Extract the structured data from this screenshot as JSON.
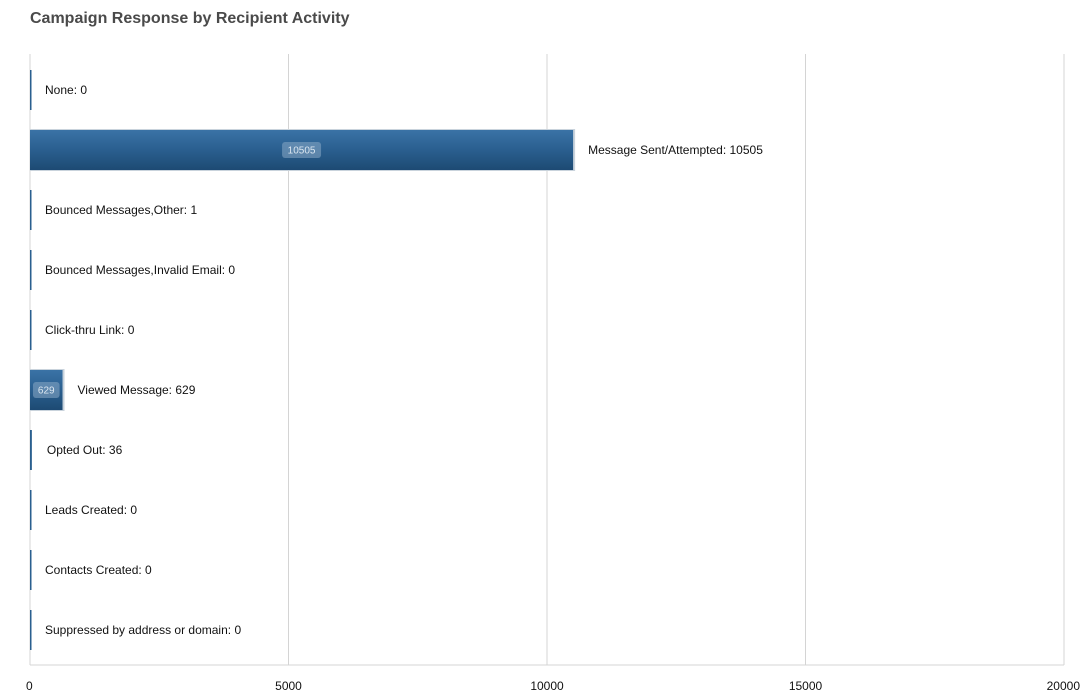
{
  "chart_data": {
    "type": "bar",
    "orientation": "horizontal",
    "title": "Campaign Response by Recipient Activity",
    "categories": [
      "None",
      "Message Sent/Attempted",
      "Bounced Messages,Other",
      "Bounced Messages,Invalid Email",
      "Click-thru Link",
      "Viewed Message",
      "Opted Out",
      "Leads Created",
      "Contacts Created",
      "Suppressed by address or domain"
    ],
    "values": [
      0,
      10505,
      1,
      0,
      0,
      629,
      36,
      0,
      0,
      0
    ],
    "xlim": [
      0,
      20000
    ],
    "xticks": [
      0,
      5000,
      10000,
      15000,
      20000
    ],
    "grid": true,
    "legend": "none",
    "bar_color": "#2a5f8f",
    "grid_color": "#d4d4d4",
    "label_color": "#111111",
    "tick_color": "#111111"
  }
}
